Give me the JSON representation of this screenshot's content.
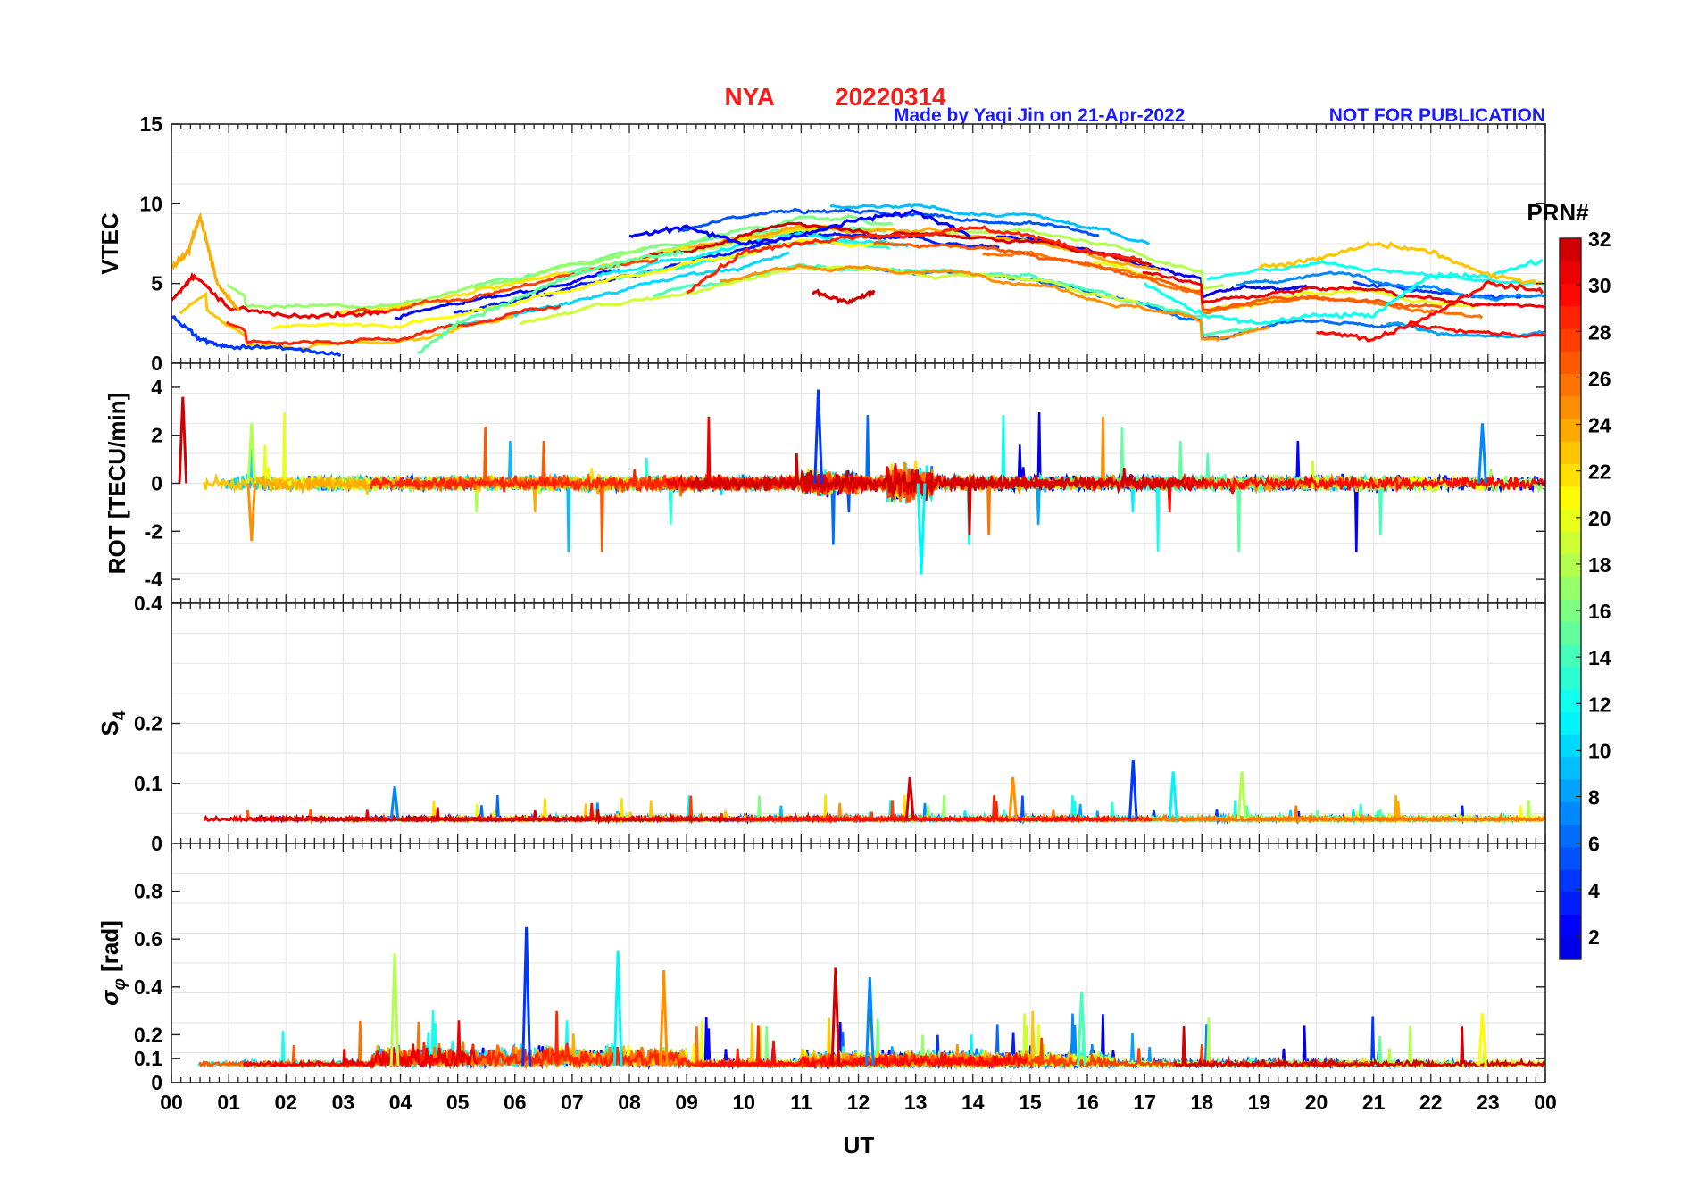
{
  "header": {
    "station": "NYA",
    "date": "20220314",
    "credit": "Made by Yaqi Jin on 21-Apr-2022",
    "notice": "NOT FOR PUBLICATION",
    "title_color": "#ff1a1a",
    "credit_color": "#1a1aff"
  },
  "chart_data": [
    {
      "type": "line",
      "id": "vtec",
      "ylabel": "VTEC",
      "ylim": [
        0,
        15
      ],
      "yticks": [
        0,
        5,
        10,
        15
      ],
      "ytick_labels": [
        "0",
        "5",
        "10",
        "15"
      ],
      "description_series": "Multiple GPS PRN traces (PRN 1–32) of vertical TEC vs UT",
      "series": [
        {
          "name": "PRN 31",
          "x": [
            0.0,
            0.4,
            1.0,
            2.0,
            3.0,
            3.8
          ],
          "values": [
            4.0,
            5.5,
            3.5,
            3.0,
            3.0,
            3.2
          ]
        },
        {
          "name": "PRN 24",
          "x": [
            0.0,
            0.3,
            0.5,
            0.8,
            1.2
          ],
          "values": [
            6.0,
            7.0,
            9.3,
            5.0,
            3.2
          ]
        },
        {
          "name": "PRN 4",
          "x": [
            0.0,
            0.5,
            1.0,
            2.0,
            3.0
          ],
          "values": [
            3.0,
            1.5,
            1.0,
            1.0,
            0.5
          ]
        },
        {
          "name": "PRN 15",
          "x": [
            4.3,
            5.0,
            6.0,
            7.0,
            8.0,
            9.0
          ],
          "values": [
            0.6,
            2.5,
            4.0,
            5.5,
            6.5,
            7.0
          ]
        },
        {
          "name": "PRN 2",
          "x": [
            8.0,
            9.0,
            10.0,
            11.0,
            12.0,
            13.0,
            14.0
          ],
          "values": [
            8.0,
            8.5,
            7.5,
            8.0,
            9.0,
            9.5,
            8.0
          ]
        },
        {
          "name": "PRN 29",
          "x": [
            9.0,
            10.0,
            11.0,
            12.0,
            13.0,
            14.0,
            15.0,
            16.0,
            17.0
          ],
          "values": [
            4.5,
            7.0,
            7.5,
            8.0,
            8.0,
            8.5,
            8.0,
            7.0,
            6.5
          ]
        },
        {
          "name": "PRN 32",
          "x": [
            11.2,
            11.8,
            12.3
          ],
          "values": [
            4.5,
            3.8,
            4.5
          ]
        },
        {
          "name": "PRN 12",
          "x": [
            17.0,
            18.0,
            19.0,
            20.0,
            21.0,
            22.0,
            23.0,
            24.0
          ],
          "values": [
            5.0,
            3.0,
            2.5,
            3.0,
            3.0,
            5.5,
            5.5,
            6.5
          ]
        },
        {
          "name": "PRN 23",
          "x": [
            19.0,
            20.0,
            21.0,
            22.0,
            23.0,
            24.0
          ],
          "values": [
            6.0,
            6.5,
            7.5,
            7.0,
            5.5,
            5.0
          ]
        },
        {
          "name": "PRN 30",
          "x": [
            20.0,
            21.0,
            22.0,
            23.0,
            24.0
          ],
          "values": [
            2.0,
            1.5,
            3.0,
            5.0,
            4.5
          ]
        }
      ]
    },
    {
      "type": "line",
      "id": "rot",
      "ylabel": "ROT [TECU/min]",
      "ylim": [
        -5,
        5
      ],
      "yticks": [
        -4,
        -2,
        0,
        2,
        4
      ],
      "ytick_labels": [
        "-4",
        "-2",
        "0",
        "2",
        "4"
      ],
      "description_series": "Rate of TEC per PRN, noisy around 0 with spikes",
      "spikes": [
        {
          "x": 11.3,
          "value": 3.9
        },
        {
          "x": 13.1,
          "value": -3.8
        },
        {
          "x": 1.4,
          "value": 2.5
        },
        {
          "x": 1.4,
          "value": -2.4
        },
        {
          "x": 0.2,
          "value": 3.6
        },
        {
          "x": 22.9,
          "value": 2.5
        }
      ]
    },
    {
      "type": "line",
      "id": "s4",
      "ylabel": "S",
      "ylabel_sub": "4",
      "ylim": [
        0,
        0.4
      ],
      "yticks": [
        0,
        0.1,
        0.2,
        0.4
      ],
      "ytick_labels": [
        "0",
        "0.1",
        "0.2",
        "0.4"
      ],
      "description_series": "Amplitude scintillation index per PRN, baseline ~0.04",
      "spikes": [
        {
          "x": 16.8,
          "value": 0.14
        },
        {
          "x": 17.5,
          "value": 0.12
        },
        {
          "x": 18.7,
          "value": 0.12
        },
        {
          "x": 14.7,
          "value": 0.11
        },
        {
          "x": 12.9,
          "value": 0.11
        },
        {
          "x": 3.9,
          "value": 0.095
        }
      ]
    },
    {
      "type": "line",
      "id": "sigma_phi",
      "ylabel": "σ",
      "ylabel_sub": "φ",
      "ylabel_unit": "[rad]",
      "ylim": [
        0,
        1.0
      ],
      "yticks": [
        0,
        0.1,
        0.2,
        0.4,
        0.6,
        0.8
      ],
      "ytick_labels": [
        "0",
        "0.1",
        "0.2",
        "0.4",
        "0.6",
        "0.8"
      ],
      "description_series": "Phase scintillation index per PRN, baseline ~0.07",
      "spikes": [
        {
          "x": 6.2,
          "value": 0.65
        },
        {
          "x": 7.8,
          "value": 0.55
        },
        {
          "x": 3.9,
          "value": 0.54
        },
        {
          "x": 8.6,
          "value": 0.47
        },
        {
          "x": 11.6,
          "value": 0.48
        },
        {
          "x": 12.2,
          "value": 0.44
        },
        {
          "x": 15.9,
          "value": 0.38
        },
        {
          "x": 22.9,
          "value": 0.29
        }
      ]
    }
  ],
  "xaxis": {
    "label": "UT",
    "xlim": [
      0,
      24
    ],
    "tick_labels": [
      "00",
      "01",
      "02",
      "03",
      "04",
      "05",
      "06",
      "07",
      "08",
      "09",
      "10",
      "11",
      "12",
      "13",
      "14",
      "15",
      "16",
      "17",
      "18",
      "19",
      "20",
      "21",
      "22",
      "23",
      "00"
    ]
  },
  "colorbar": {
    "title": "PRN#",
    "range": [
      1,
      32
    ],
    "tick_labels": [
      "2",
      "4",
      "6",
      "8",
      "10",
      "12",
      "14",
      "16",
      "18",
      "20",
      "22",
      "24",
      "26",
      "28",
      "30",
      "32"
    ],
    "colormap": "jet"
  }
}
